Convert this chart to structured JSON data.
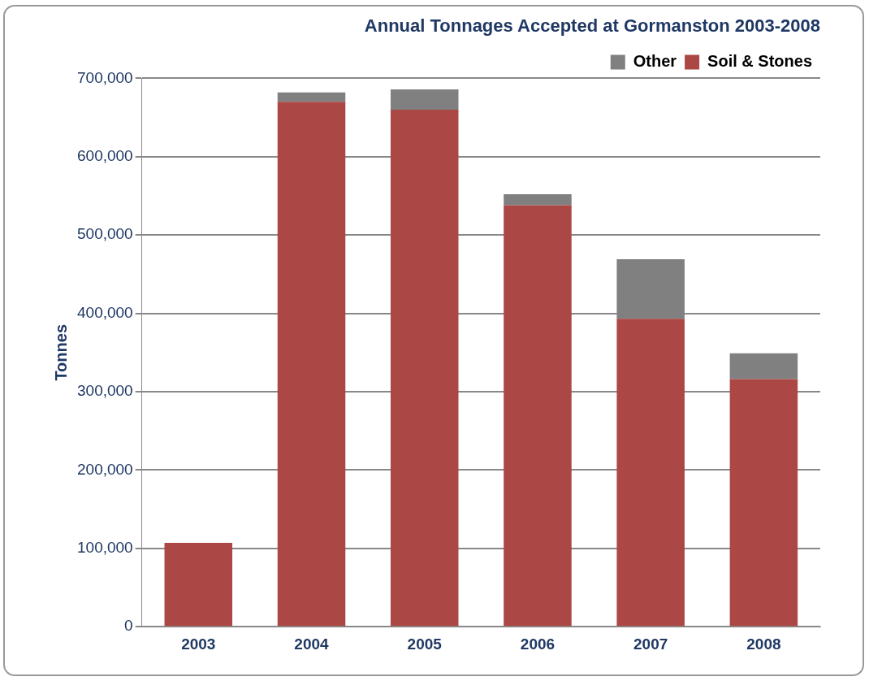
{
  "chart_data": {
    "type": "bar",
    "title": "Annual Tonnages Accepted at Gormanston 2003-2008",
    "ylabel": "Tonnes",
    "categories": [
      "2003",
      "2004",
      "2005",
      "2006",
      "2007",
      "2008"
    ],
    "stacked": true,
    "series": [
      {
        "name": "Soil & Stones",
        "color": "#ab4744",
        "values": [
          107000,
          670000,
          660000,
          538000,
          393000,
          316000
        ]
      },
      {
        "name": "Other",
        "color": "#808080",
        "values": [
          0,
          12000,
          26000,
          14000,
          76000,
          33000
        ]
      }
    ],
    "ylim": [
      0,
      700000
    ],
    "yticks": [
      {
        "value": 0,
        "label": "0"
      },
      {
        "value": 100000,
        "label": "100,000"
      },
      {
        "value": 200000,
        "label": "200,000"
      },
      {
        "value": 300000,
        "label": "300,000"
      },
      {
        "value": 400000,
        "label": "400,000"
      },
      {
        "value": 500000,
        "label": "500,000"
      },
      {
        "value": 600000,
        "label": "600,000"
      },
      {
        "value": 700000,
        "label": "700,000"
      }
    ],
    "grid": "y",
    "legend": "top right"
  }
}
